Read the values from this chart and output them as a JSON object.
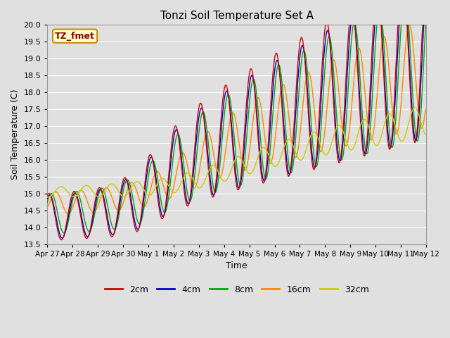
{
  "title": "Tonzi Soil Temperature Set A",
  "xlabel": "Time",
  "ylabel": "Soil Temperature (C)",
  "ylim": [
    13.5,
    20.0
  ],
  "yticks": [
    13.5,
    14.0,
    14.5,
    15.0,
    15.5,
    16.0,
    16.5,
    17.0,
    17.5,
    18.0,
    18.5,
    19.0,
    19.5,
    20.0
  ],
  "xtick_labels": [
    "Apr 27",
    "Apr 28",
    "Apr 29",
    "Apr 30",
    "May 1",
    "May 2",
    "May 3",
    "May 4",
    "May 5",
    "May 6",
    "May 7",
    "May 8",
    "May 9",
    "May 10",
    "May 11",
    "May 12"
  ],
  "series_colors": [
    "#cc0000",
    "#0000cc",
    "#00aa00",
    "#ff8800",
    "#cccc00"
  ],
  "series_labels": [
    "2cm",
    "4cm",
    "8cm",
    "16cm",
    "32cm"
  ],
  "background_color": "#e0e0e0",
  "plot_bg_color": "#e0e0e0",
  "label_box_text": "TZ_fmet",
  "label_box_color": "#ffffcc",
  "label_box_border": "#cc8800",
  "grid_color": "#ffffff"
}
